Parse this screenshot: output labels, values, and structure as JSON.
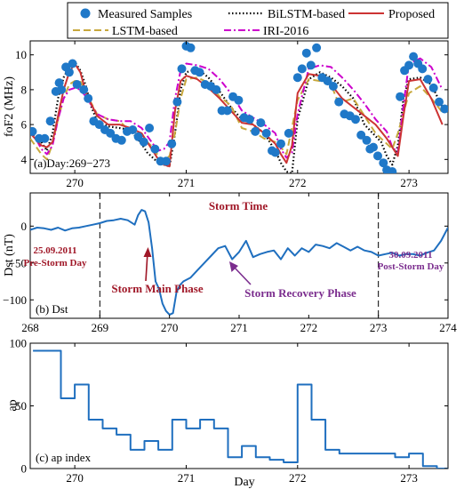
{
  "legend": {
    "entries": [
      {
        "label": "Measured Samples",
        "style": "marker",
        "color": "#1f78c8"
      },
      {
        "label": "BiLSTM-based",
        "style": "dotted",
        "color": "#000000"
      },
      {
        "label": "Proposed",
        "style": "solid",
        "color": "#cc3333"
      },
      {
        "label": "LSTM-based",
        "style": "dashed",
        "color": "#c8a83c"
      },
      {
        "label": "IRI-2016",
        "style": "dashdot",
        "color": "#cc00cc"
      }
    ]
  },
  "colors": {
    "measured": "#1f78c8",
    "bilstm": "#000000",
    "proposed": "#cc3333",
    "lstm": "#c8a83c",
    "iri": "#cc00cc",
    "dst": "#1f6fbf",
    "ap": "#1f6fbf",
    "annotation_red": "#a01828",
    "annotation_purple": "#7b2d8e"
  },
  "chart_data": [
    {
      "type": "line",
      "panel_label": "(a)Day:269−273",
      "ylabel": "foF2 (MHz)",
      "xlim": [
        269.6,
        273.35
      ],
      "ylim": [
        3.2,
        10.8
      ],
      "xticks": [
        270,
        271,
        272,
        273
      ],
      "xtick_labels": [
        "270",
        "271",
        "272",
        "273"
      ],
      "yticks": [
        4,
        6,
        8,
        10
      ],
      "ytick_labels": [
        "4",
        "6",
        "8",
        "10"
      ],
      "grid": false,
      "series": [
        {
          "name": "BiLSTM-based",
          "key": "bilstm",
          "x": [
            269.6,
            269.7,
            269.75,
            269.8,
            269.85,
            269.9,
            269.95,
            270.0,
            270.05,
            270.1,
            270.15,
            270.2,
            270.3,
            270.4,
            270.5,
            270.6,
            270.65,
            270.75,
            270.85,
            270.9,
            270.95,
            271.0,
            271.1,
            271.2,
            271.3,
            271.4,
            271.5,
            271.6,
            271.7,
            271.8,
            271.85,
            271.9,
            271.95,
            272.0,
            272.1,
            272.2,
            272.3,
            272.4,
            272.5,
            272.6,
            272.75,
            272.8,
            272.85,
            272.9,
            272.95,
            273.0,
            273.1,
            273.2,
            273.3
          ],
          "y": [
            5.5,
            5.0,
            4.5,
            5.5,
            7.5,
            8.7,
            9.3,
            9.6,
            9.1,
            8.2,
            7.0,
            6.2,
            5.9,
            5.8,
            5.7,
            4.9,
            4.4,
            3.8,
            3.6,
            5.5,
            8.0,
            9.0,
            9.2,
            8.7,
            7.9,
            7.0,
            6.3,
            6.0,
            5.5,
            4.5,
            3.8,
            3.3,
            3.2,
            6.3,
            8.6,
            9.0,
            8.7,
            8.2,
            7.5,
            6.0,
            5.0,
            4.2,
            3.7,
            4.8,
            7.5,
            8.6,
            8.7,
            8.3,
            7.0
          ]
        },
        {
          "name": "LSTM-based",
          "key": "lstm",
          "x": [
            269.6,
            269.7,
            269.75,
            269.8,
            269.85,
            269.9,
            269.95,
            270.0,
            270.05,
            270.1,
            270.2,
            270.3,
            270.4,
            270.5,
            270.6,
            270.65,
            270.7,
            270.75,
            270.8,
            270.85,
            270.9,
            270.95,
            271.0,
            271.1,
            271.2,
            271.3,
            271.4,
            271.5,
            271.6,
            271.7,
            271.8,
            271.85,
            271.9,
            272.0,
            272.1,
            272.2,
            272.3,
            272.35,
            272.4,
            272.5,
            272.6,
            272.7,
            272.8,
            272.85,
            272.9,
            273.0,
            273.1,
            273.2,
            273.3
          ],
          "y": [
            5.2,
            4.3,
            4.0,
            4.9,
            6.3,
            7.5,
            8.3,
            8.5,
            8.5,
            7.8,
            6.6,
            6.3,
            6.2,
            5.6,
            5.5,
            5.0,
            4.7,
            4.2,
            3.9,
            4.2,
            5.5,
            7.5,
            8.6,
            8.7,
            8.4,
            7.6,
            7.1,
            5.8,
            5.6,
            5.2,
            5.0,
            4.7,
            4.3,
            7.4,
            8.6,
            8.5,
            8.3,
            7.5,
            7.3,
            7.5,
            6.5,
            5.5,
            4.9,
            4.6,
            5.5,
            7.8,
            8.2,
            7.5,
            6.7
          ]
        },
        {
          "name": "IRI-2016",
          "key": "iri",
          "x": [
            269.6,
            269.7,
            269.75,
            269.8,
            269.85,
            269.9,
            269.95,
            270.0,
            270.05,
            270.1,
            270.2,
            270.3,
            270.4,
            270.5,
            270.6,
            270.7,
            270.75,
            270.8,
            270.85,
            270.9,
            270.95,
            271.0,
            271.1,
            271.2,
            271.3,
            271.4,
            271.5,
            271.6,
            271.7,
            271.8,
            271.85,
            271.9,
            271.95,
            272.0,
            272.1,
            272.2,
            272.3,
            272.4,
            272.5,
            272.6,
            272.7,
            272.8,
            272.85,
            272.9,
            272.95,
            273.0,
            273.1,
            273.2,
            273.3
          ],
          "y": [
            5.8,
            4.6,
            4.3,
            4.8,
            6.3,
            7.5,
            8.0,
            8.1,
            8.0,
            7.6,
            6.6,
            6.3,
            6.2,
            6.2,
            5.8,
            4.9,
            4.5,
            4.6,
            5.0,
            7.5,
            9.1,
            9.5,
            9.4,
            9.2,
            8.6,
            7.8,
            6.8,
            6.4,
            6.0,
            5.5,
            4.6,
            4.1,
            4.4,
            6.6,
            9.2,
            9.4,
            9.3,
            8.7,
            8.0,
            7.2,
            6.3,
            5.6,
            4.7,
            4.4,
            7.1,
            9.5,
            9.8,
            9.3,
            8.0
          ]
        },
        {
          "name": "Proposed",
          "key": "proposed",
          "x": [
            269.6,
            269.7,
            269.75,
            269.8,
            269.85,
            269.9,
            269.95,
            270.0,
            270.05,
            270.1,
            270.2,
            270.3,
            270.4,
            270.5,
            270.6,
            270.7,
            270.75,
            270.8,
            270.85,
            270.9,
            270.95,
            271.0,
            271.1,
            271.2,
            271.3,
            271.4,
            271.5,
            271.6,
            271.7,
            271.8,
            271.85,
            271.9,
            271.95,
            272.0,
            272.1,
            272.2,
            272.3,
            272.4,
            272.5,
            272.6,
            272.7,
            272.8,
            272.85,
            272.9,
            272.95,
            273.0,
            273.1,
            273.2,
            273.3
          ],
          "y": [
            5.5,
            4.8,
            4.7,
            5.0,
            6.5,
            8.0,
            9.0,
            9.5,
            9.0,
            7.8,
            6.5,
            6.0,
            6.0,
            5.8,
            5.5,
            4.5,
            4.0,
            3.7,
            3.6,
            6.8,
            8.5,
            8.8,
            8.6,
            8.1,
            7.5,
            6.8,
            6.1,
            6.0,
            5.5,
            4.9,
            4.3,
            3.8,
            4.8,
            7.8,
            8.9,
            8.8,
            8.3,
            7.5,
            7.0,
            6.5,
            6.0,
            5.2,
            4.7,
            4.2,
            6.5,
            8.5,
            8.6,
            7.5,
            6.0
          ]
        },
        {
          "name": "Measured Samples",
          "key": "measured",
          "marker": true,
          "x": [
            269.62,
            269.68,
            269.73,
            269.78,
            269.83,
            269.86,
            269.88,
            269.92,
            269.95,
            269.98,
            270.02,
            270.08,
            270.12,
            270.17,
            270.22,
            270.27,
            270.32,
            270.37,
            270.42,
            270.47,
            270.52,
            270.57,
            270.62,
            270.67,
            270.72,
            270.77,
            270.82,
            270.87,
            270.92,
            270.96,
            271.0,
            271.04,
            271.08,
            271.12,
            271.17,
            271.22,
            271.27,
            271.32,
            271.37,
            271.42,
            271.47,
            271.52,
            271.57,
            271.62,
            271.67,
            271.72,
            271.77,
            271.8,
            271.85,
            271.92,
            272.0,
            272.04,
            272.08,
            272.12,
            272.17,
            272.22,
            272.27,
            272.32,
            272.37,
            272.42,
            272.47,
            272.52,
            272.57,
            272.62,
            272.65,
            272.68,
            272.72,
            272.77,
            272.8,
            272.85,
            272.92,
            272.96,
            273.0,
            273.04,
            273.08,
            273.12,
            273.17,
            273.22,
            273.27,
            273.32
          ],
          "y": [
            5.6,
            5.2,
            5.2,
            6.2,
            7.9,
            8.4,
            8.0,
            9.3,
            9.0,
            9.5,
            8.3,
            8.0,
            7.5,
            6.2,
            6.0,
            5.7,
            5.5,
            5.2,
            5.1,
            5.6,
            5.7,
            5.3,
            5.0,
            5.8,
            4.6,
            3.9,
            3.9,
            4.9,
            7.3,
            9.2,
            10.5,
            10.4,
            9.1,
            9.0,
            8.3,
            8.2,
            8.0,
            6.8,
            6.8,
            7.6,
            7.4,
            6.4,
            6.3,
            5.6,
            6.1,
            5.5,
            4.5,
            4.4,
            4.9,
            5.5,
            8.7,
            9.2,
            10.1,
            9.4,
            10.4,
            8.7,
            8.5,
            8.2,
            7.3,
            6.6,
            6.5,
            6.3,
            5.4,
            5.1,
            4.6,
            4.7,
            4.2,
            3.8,
            3.4,
            3.3,
            7.6,
            9.1,
            9.4,
            9.9,
            9.5,
            9.2,
            8.6,
            8.1,
            7.3,
            6.9
          ]
        }
      ]
    },
    {
      "type": "line",
      "panel_label": "(b) Dst",
      "ylabel": "Dst (nT)",
      "xlim": [
        268,
        274
      ],
      "ylim": [
        -125,
        45
      ],
      "xticks": [
        268,
        269,
        270,
        271,
        272,
        273,
        274
      ],
      "xtick_labels": [
        "268",
        "269",
        "270",
        "271",
        "272",
        "273",
        "274"
      ],
      "yticks": [
        0,
        -50,
        -100
      ],
      "ytick_labels": [
        "0",
        "−50",
        "−100"
      ],
      "vlines": [
        269,
        273
      ],
      "grid": false,
      "series": [
        {
          "name": "Dst",
          "key": "dst",
          "x": [
            268.0,
            268.1,
            268.2,
            268.3,
            268.4,
            268.5,
            268.6,
            268.7,
            268.8,
            268.9,
            269.0,
            269.1,
            269.2,
            269.3,
            269.4,
            269.5,
            269.55,
            269.6,
            269.65,
            269.7,
            269.75,
            269.8,
            269.85,
            269.9,
            269.95,
            270.0,
            270.05,
            270.1,
            270.15,
            270.2,
            270.3,
            270.4,
            270.5,
            270.6,
            270.7,
            270.8,
            270.9,
            271.0,
            271.1,
            271.2,
            271.3,
            271.4,
            271.5,
            271.6,
            271.7,
            271.8,
            271.9,
            272.0,
            272.1,
            272.2,
            272.3,
            272.4,
            272.5,
            272.6,
            272.7,
            272.8,
            272.9,
            273.0,
            273.1,
            273.2,
            273.3,
            273.4,
            273.5,
            273.6,
            273.7,
            273.8,
            273.9,
            274.0
          ],
          "y": [
            -5,
            -2,
            -3,
            -5,
            -2,
            -6,
            -3,
            -2,
            0,
            2,
            4,
            7,
            8,
            10,
            8,
            2,
            15,
            22,
            20,
            5,
            -30,
            -75,
            -85,
            -105,
            -115,
            -120,
            -118,
            -90,
            -80,
            -75,
            -70,
            -60,
            -50,
            -40,
            -30,
            -27,
            -45,
            -35,
            -20,
            -42,
            -38,
            -35,
            -33,
            -45,
            -30,
            -40,
            -30,
            -35,
            -25,
            -27,
            -30,
            -23,
            -28,
            -33,
            -28,
            -33,
            -35,
            -40,
            -38,
            -36,
            -40,
            -38,
            -38,
            -40,
            -36,
            -33,
            -20,
            -2
          ]
        }
      ],
      "annotations": {
        "storm_time": "Storm Time",
        "pre_date": "25.09.2011",
        "pre_label": "Pre-Storm Day",
        "main_phase": "Storm Main Phase",
        "recovery_phase": "Storm Recovery Phase",
        "post_date": "30.09.2011",
        "post_label": "Post-Storm Day"
      }
    },
    {
      "type": "line",
      "panel_label": "(c) ap index",
      "ylabel": "ap",
      "xlabel": "Day",
      "xlim": [
        269.6,
        273.35
      ],
      "ylim": [
        0,
        100
      ],
      "xticks": [
        270,
        271,
        272,
        273
      ],
      "xtick_labels": [
        "270",
        "271",
        "272",
        "273"
      ],
      "yticks": [
        0,
        50,
        100
      ],
      "ytick_labels": [
        "0",
        "50",
        "100"
      ],
      "grid": false,
      "series": [
        {
          "name": "ap",
          "key": "ap",
          "step": true,
          "x": [
            269.625,
            269.75,
            269.875,
            270.0,
            270.125,
            270.25,
            270.375,
            270.5,
            270.625,
            270.75,
            270.875,
            271.0,
            271.125,
            271.25,
            271.375,
            271.5,
            271.625,
            271.75,
            271.875,
            272.0,
            272.125,
            272.25,
            272.375,
            272.5,
            272.625,
            272.75,
            272.875,
            273.0,
            273.125,
            273.25
          ],
          "y": [
            94,
            94,
            56,
            67,
            39,
            32,
            27,
            15,
            22,
            15,
            39,
            32,
            39,
            32,
            9,
            18,
            9,
            7,
            5,
            67,
            39,
            15,
            12,
            12,
            12,
            12,
            9,
            12,
            2,
            0
          ]
        }
      ]
    }
  ]
}
